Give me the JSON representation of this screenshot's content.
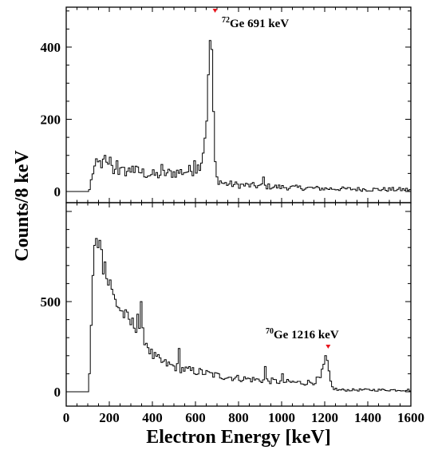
{
  "figure": {
    "xlabel": "Electron Energy [keV]",
    "ylabel": "Counts/8 keV"
  },
  "chart_data": {
    "type": "histogram",
    "shared_x_axis": true,
    "xlabel": "Electron Energy [keV]",
    "ylabel": "Counts/8 keV",
    "xlim": [
      0,
      1600
    ],
    "x_tick_labels": [
      "0",
      "200",
      "400",
      "600",
      "800",
      "1000",
      "1200",
      "1400",
      "1600"
    ],
    "panels": [
      {
        "id": "top",
        "ylim": [
          -30,
          500
        ],
        "y_tick_labels": [
          "0",
          "200",
          "400"
        ],
        "annotation": {
          "sup": "72",
          "text": "Ge 691 keV",
          "x": 691,
          "marker_color": "#e8141c"
        },
        "envelope": [
          [
            0,
            0
          ],
          [
            100,
            0
          ],
          [
            112,
            8
          ],
          [
            120,
            50
          ],
          [
            135,
            70
          ],
          [
            160,
            80
          ],
          [
            185,
            70
          ],
          [
            220,
            60
          ],
          [
            260,
            55
          ],
          [
            300,
            58
          ],
          [
            340,
            55
          ],
          [
            380,
            48
          ],
          [
            420,
            45
          ],
          [
            460,
            50
          ],
          [
            500,
            52
          ],
          [
            540,
            55
          ],
          [
            580,
            58
          ],
          [
            610,
            65
          ],
          [
            630,
            90
          ],
          [
            648,
            170
          ],
          [
            660,
            300
          ],
          [
            668,
            420
          ],
          [
            672,
            480
          ],
          [
            680,
            300
          ],
          [
            688,
            100
          ],
          [
            700,
            35
          ],
          [
            730,
            22
          ],
          [
            800,
            18
          ],
          [
            900,
            15
          ],
          [
            1000,
            12
          ],
          [
            1200,
            8
          ],
          [
            1400,
            6
          ],
          [
            1600,
            5
          ]
        ],
        "spikes": [
          [
            176,
            100
          ],
          [
            200,
            95
          ],
          [
            232,
            85
          ],
          [
            300,
            70
          ],
          [
            440,
            75
          ],
          [
            592,
            85
          ],
          [
            912,
            40
          ]
        ]
      },
      {
        "id": "bottom",
        "ylim": [
          -25,
          950
        ],
        "y_tick_labels": [
          "0",
          "500"
        ],
        "annotation": {
          "sup": "70",
          "text": "Ge 1216 keV",
          "x": 1216,
          "marker_color": "#e8141c"
        },
        "envelope": [
          [
            0,
            0
          ],
          [
            100,
            0
          ],
          [
            112,
            150
          ],
          [
            120,
            550
          ],
          [
            130,
            780
          ],
          [
            145,
            840
          ],
          [
            160,
            780
          ],
          [
            180,
            660
          ],
          [
            200,
            580
          ],
          [
            230,
            500
          ],
          [
            260,
            440
          ],
          [
            300,
            380
          ],
          [
            340,
            360
          ],
          [
            370,
            280
          ],
          [
            400,
            200
          ],
          [
            450,
            160
          ],
          [
            500,
            140
          ],
          [
            560,
            120
          ],
          [
            620,
            110
          ],
          [
            700,
            90
          ],
          [
            800,
            75
          ],
          [
            900,
            65
          ],
          [
            1000,
            55
          ],
          [
            1100,
            50
          ],
          [
            1150,
            55
          ],
          [
            1180,
            75
          ],
          [
            1195,
            130
          ],
          [
            1203,
            190
          ],
          [
            1210,
            170
          ],
          [
            1222,
            80
          ],
          [
            1235,
            25
          ],
          [
            1260,
            10
          ],
          [
            1400,
            10
          ],
          [
            1600,
            10
          ]
        ],
        "spikes": [
          [
            136,
            850
          ],
          [
            152,
            840
          ],
          [
            176,
            720
          ],
          [
            200,
            620
          ],
          [
            328,
            430
          ],
          [
            344,
            500
          ],
          [
            520,
            240
          ],
          [
            920,
            140
          ],
          [
            1000,
            100
          ]
        ]
      }
    ]
  }
}
